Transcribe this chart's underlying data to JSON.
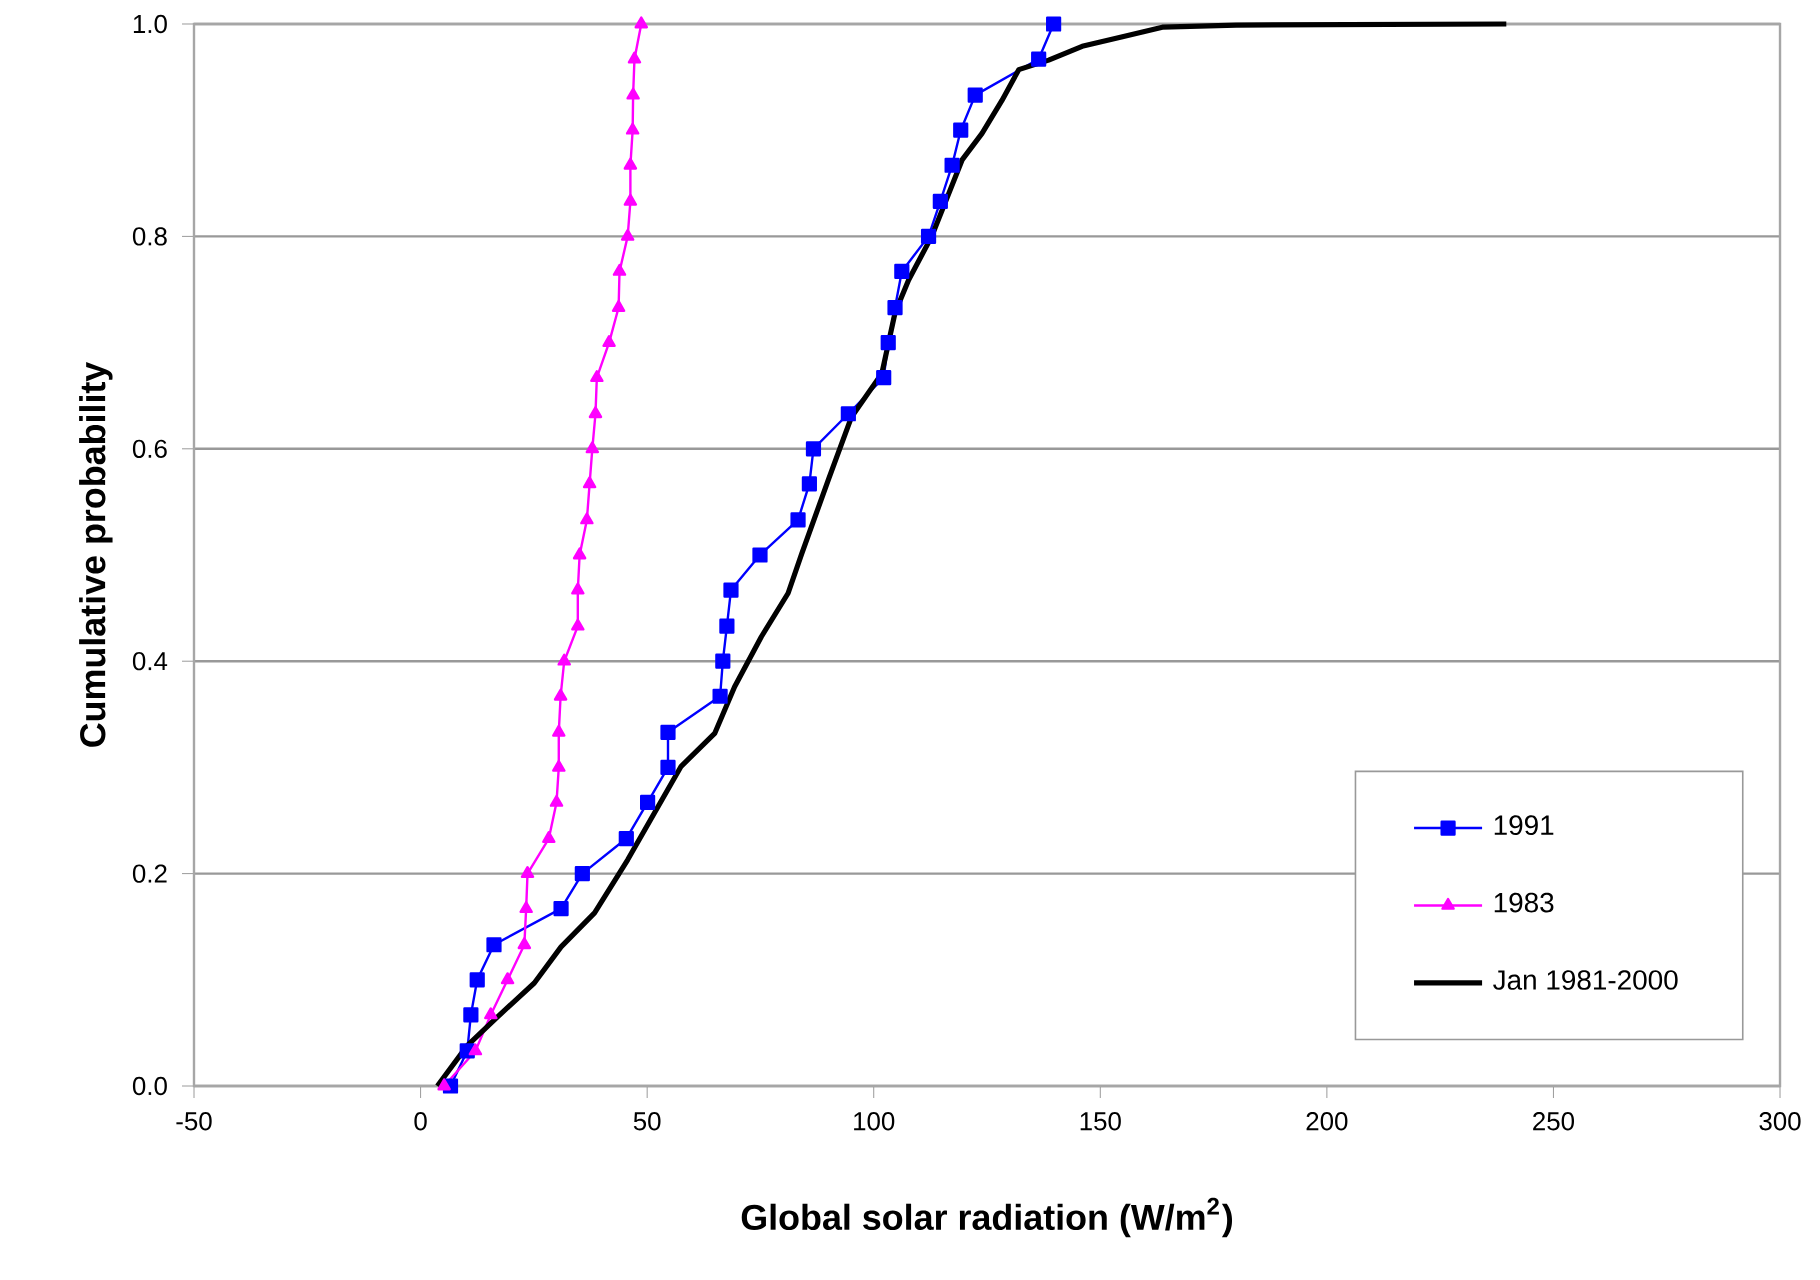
{
  "chart_data": {
    "type": "line",
    "xlabel": "Global solar radiation (W/m$^{2}$)",
    "ylabel": "Cumulative probability",
    "xlim": [
      -50,
      300
    ],
    "xticks": [
      -50,
      0,
      50,
      100,
      150,
      200,
      250,
      300
    ],
    "ylim": [
      0,
      1
    ],
    "yticks": [
      {
        "value": 0,
        "label": "0.0"
      },
      {
        "value": 0.2,
        "label": "0.2"
      },
      {
        "value": 0.4,
        "label": "0.4"
      },
      {
        "value": 0.6,
        "label": "0.6"
      },
      {
        "value": 0.8,
        "label": "0.8"
      },
      {
        "value": 1,
        "label": "1.0"
      }
    ],
    "grid": "y",
    "legend": "bottom right",
    "line_style": "solid",
    "series": [
      {
        "name": "1991",
        "color": "#0000ff",
        "marker": "square",
        "x": [
          6.6,
          10.3,
          11.1,
          12.5,
          16.2,
          31,
          35.7,
          45.4,
          50.1,
          54.6,
          54.6,
          66.1,
          66.7,
          67.6,
          68.5,
          74.9,
          83.3,
          85.8,
          86.7,
          94.4,
          102.2,
          103.2,
          104.7,
          106.2,
          112.1,
          114.7,
          117.3,
          119.2,
          122.4,
          136.4,
          139.7
        ],
        "values": [
          0,
          0.033,
          0.067,
          0.1,
          0.133,
          0.167,
          0.2,
          0.233,
          0.267,
          0.3,
          0.333,
          0.367,
          0.4,
          0.433,
          0.467,
          0.5,
          0.533,
          0.567,
          0.6,
          0.633,
          0.667,
          0.7,
          0.733,
          0.767,
          0.8,
          0.833,
          0.867,
          0.9,
          0.933,
          0.967,
          1
        ]
      },
      {
        "name": "1983",
        "color": "#ff00ff",
        "marker": "triangle",
        "x": [
          5.2,
          12.1,
          15.5,
          19.2,
          22.9,
          23.3,
          23.6,
          28.3,
          30,
          30.5,
          30.5,
          30.9,
          31.7,
          34.7,
          34.7,
          35.1,
          36.7,
          37.3,
          37.9,
          38.6,
          38.9,
          41.6,
          43.7,
          43.9,
          45.7,
          46.3,
          46.3,
          46.8,
          46.9,
          47.2,
          48.7
        ],
        "values": [
          0,
          0.033,
          0.067,
          0.1,
          0.133,
          0.167,
          0.2,
          0.233,
          0.267,
          0.3,
          0.333,
          0.367,
          0.4,
          0.433,
          0.467,
          0.5,
          0.533,
          0.567,
          0.6,
          0.633,
          0.667,
          0.7,
          0.733,
          0.767,
          0.8,
          0.833,
          0.867,
          0.9,
          0.933,
          0.967,
          1
        ]
      },
      {
        "name": "Jan 1981-2000",
        "color": "#000000",
        "marker": "none",
        "x": [
          3.7,
          10.3,
          17.7,
          25.1,
          31,
          38.4,
          45.7,
          51.6,
          57.5,
          64.9,
          69.3,
          75.2,
          81.1,
          84.1,
          90,
          95.1,
          101.8,
          104.7,
          107.7,
          112.8,
          119.5,
          123.9,
          128.3,
          132,
          138.6,
          146,
          154.9,
          163.7,
          180,
          239.6
        ],
        "values": [
          0,
          0.038,
          0.068,
          0.097,
          0.131,
          0.163,
          0.213,
          0.257,
          0.301,
          0.332,
          0.376,
          0.423,
          0.464,
          0.501,
          0.571,
          0.63,
          0.671,
          0.728,
          0.759,
          0.8,
          0.872,
          0.897,
          0.928,
          0.957,
          0.966,
          0.979,
          0.988,
          0.997,
          0.999,
          1
        ]
      }
    ]
  }
}
